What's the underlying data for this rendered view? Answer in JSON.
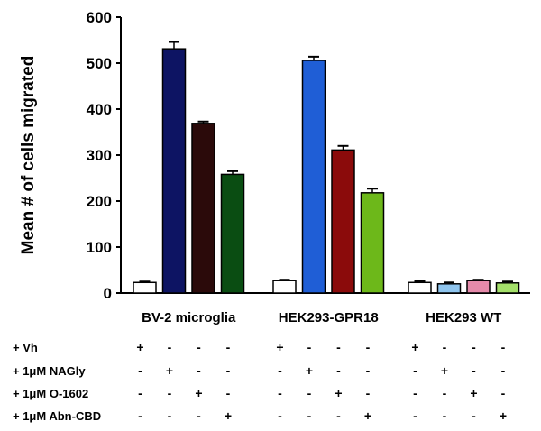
{
  "chart_data": {
    "type": "bar",
    "ylabel": "Mean # of cells migrated",
    "ylim": [
      0,
      600
    ],
    "yticks": [
      0,
      100,
      200,
      300,
      400,
      500,
      600
    ],
    "groups": [
      {
        "label": "BV-2 microglia",
        "bars": [
          {
            "value": 23,
            "error": 2,
            "color": "#ffffff"
          },
          {
            "value": 531,
            "error": 15,
            "color": "#0d1463"
          },
          {
            "value": 369,
            "error": 4,
            "color": "#2b0a0a"
          },
          {
            "value": 258,
            "error": 7,
            "color": "#0a4d12"
          }
        ]
      },
      {
        "label": "HEK293-GPR18",
        "bars": [
          {
            "value": 27,
            "error": 2,
            "color": "#ffffff"
          },
          {
            "value": 506,
            "error": 8,
            "color": "#1f5ed6"
          },
          {
            "value": 311,
            "error": 9,
            "color": "#8b0b0b"
          },
          {
            "value": 218,
            "error": 9,
            "color": "#6db81a"
          }
        ]
      },
      {
        "label": "HEK293 WT",
        "bars": [
          {
            "value": 23,
            "error": 3,
            "color": "#ffffff"
          },
          {
            "value": 20,
            "error": 3,
            "color": "#8fc5ee"
          },
          {
            "value": 27,
            "error": 2,
            "color": "#e58aaa"
          },
          {
            "value": 22,
            "error": 3,
            "color": "#a4e06a"
          }
        ]
      }
    ],
    "treatments": [
      {
        "label": "+ Vh",
        "signs": [
          "+",
          "-",
          "-",
          "-",
          "+",
          "-",
          "-",
          "-",
          "+",
          "-",
          "-",
          "-"
        ]
      },
      {
        "label": "+ 1μM NAGly",
        "signs": [
          "-",
          "+",
          "-",
          "-",
          "-",
          "+",
          "-",
          "-",
          "-",
          "+",
          "-",
          "-"
        ]
      },
      {
        "label": "+ 1μM O-1602",
        "signs": [
          "-",
          "-",
          "+",
          "-",
          "-",
          "-",
          "+",
          "-",
          "-",
          "-",
          "+",
          "-"
        ]
      },
      {
        "label": "+ 1μM Abn-CBD",
        "signs": [
          "-",
          "-",
          "-",
          "+",
          "-",
          "-",
          "-",
          "+",
          "-",
          "-",
          "-",
          "+"
        ]
      }
    ]
  }
}
